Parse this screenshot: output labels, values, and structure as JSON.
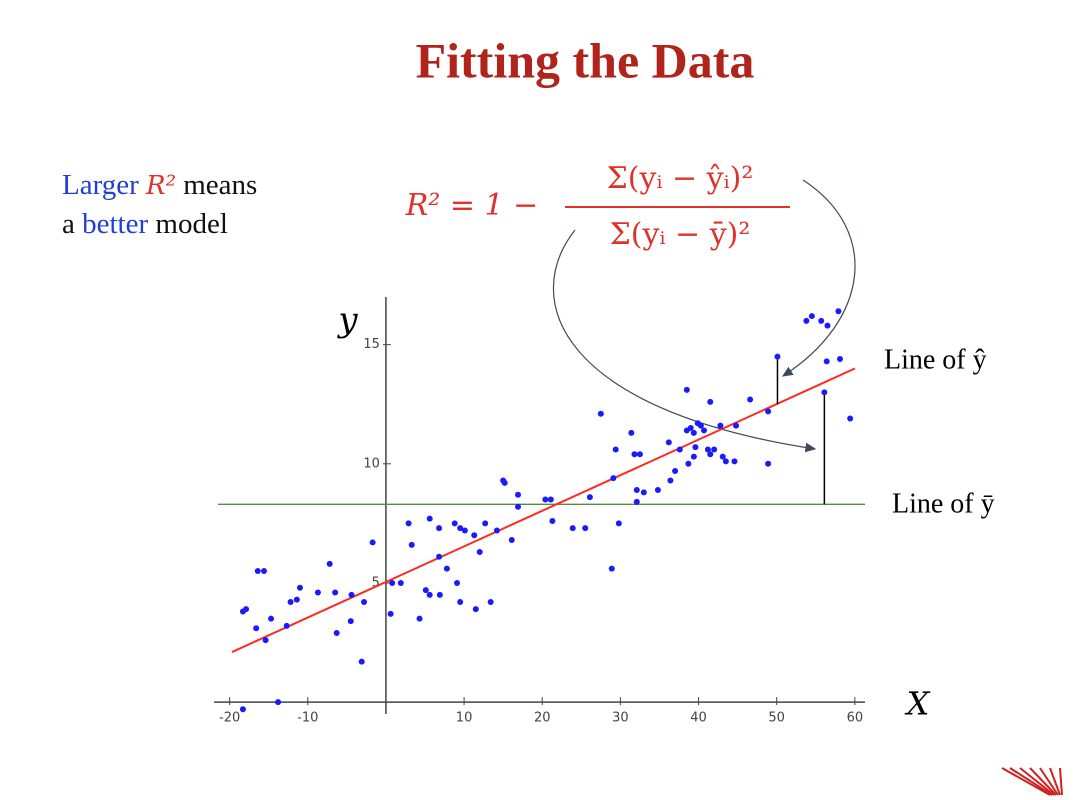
{
  "chart_data": {
    "type": "scatter",
    "title": "Fitting the Data",
    "caption": {
      "line1": [
        "Larger",
        "R²",
        "means"
      ],
      "line2": [
        "a",
        "better",
        "model"
      ]
    },
    "formula": {
      "lhs": "R² = 1 −",
      "numerator": "Σ(yᵢ − ŷᵢ)²",
      "denominator": "Σ(yᵢ − ȳ)²"
    },
    "x_label": "X",
    "y_label": "y",
    "fit_label": "Line of ŷ",
    "mean_label": "Line of ȳ",
    "xlim": [
      -22,
      61.3
    ],
    "ylim": [
      -0.5,
      17
    ],
    "xticks": [
      -20,
      -10,
      10,
      20,
      30,
      40,
      50,
      60
    ],
    "yticks": [
      5,
      10,
      15
    ],
    "series": [
      {
        "color": "#1a1aff",
        "x": [
          -18.3,
          -17.9,
          -16.6,
          -16.4,
          -15.6,
          -15.4,
          -14.7,
          -12.7,
          -12.2,
          -11.4,
          -11.0,
          -8.7,
          -7.2,
          -6.5,
          -6.3,
          -4.5,
          -4.4,
          -3.1,
          -2.8,
          -1.7,
          0.6,
          0.8,
          1.9,
          2.9,
          3.3,
          4.3,
          5.1,
          5.6,
          5.6,
          6.8,
          6.8,
          6.9,
          7.8,
          8.8,
          9.1,
          9.5,
          9.5,
          10.1,
          11.3,
          11.5,
          12.0,
          12.7,
          13.4,
          14.2,
          15.0,
          15.2,
          16.1,
          16.9,
          16.9,
          20.4,
          21.1,
          21.3,
          23.9,
          25.5,
          26.1,
          27.5,
          28.9,
          29.1,
          29.4,
          29.8,
          31.4,
          31.8,
          32.5,
          32.1,
          32.1,
          33.0,
          34.8,
          36.2,
          36.4,
          37.0,
          37.6,
          38.5,
          38.5,
          38.7,
          39.0,
          39.4,
          39.4,
          39.6,
          39.9,
          40.3,
          40.7,
          41.2,
          41.5,
          41.5,
          42.0,
          42.8,
          43.1,
          43.5,
          44.6,
          44.8,
          46.6,
          48.9,
          48.9,
          50.1,
          53.8,
          54.5,
          55.7,
          56.1,
          56.4,
          56.5,
          57.9,
          58.1,
          59.4,
          -18.3,
          -13.8
        ],
        "values": [
          3.8,
          3.9,
          3.1,
          5.5,
          5.5,
          2.6,
          3.5,
          3.2,
          4.2,
          4.3,
          4.8,
          4.6,
          5.8,
          4.6,
          2.9,
          3.4,
          4.5,
          1.7,
          4.2,
          6.7,
          3.7,
          5.0,
          5.0,
          7.5,
          6.6,
          3.5,
          4.7,
          7.7,
          4.5,
          6.1,
          7.3,
          4.5,
          5.6,
          7.5,
          5.0,
          7.3,
          4.2,
          7.2,
          7.0,
          3.9,
          6.3,
          7.5,
          4.2,
          7.2,
          9.3,
          9.2,
          6.8,
          8.7,
          8.2,
          8.5,
          8.5,
          7.6,
          7.3,
          7.3,
          8.6,
          12.1,
          5.6,
          9.4,
          10.6,
          7.5,
          11.3,
          10.4,
          10.4,
          8.9,
          8.4,
          8.8,
          8.9,
          10.9,
          9.3,
          9.7,
          10.6,
          13.1,
          11.4,
          10.0,
          11.5,
          11.3,
          10.3,
          10.7,
          11.7,
          11.6,
          11.4,
          10.6,
          12.6,
          10.4,
          10.6,
          11.6,
          10.3,
          10.1,
          10.1,
          11.6,
          12.7,
          10.0,
          12.2,
          14.5,
          16.0,
          16.2,
          16.0,
          13.0,
          14.3,
          15.8,
          16.4,
          14.4,
          11.9,
          -0.3,
          0.0
        ]
      }
    ],
    "fit_line": {
      "x": [
        -19.7,
        60.0
      ],
      "values": [
        2.1,
        14.0
      ],
      "color": "#ff2a1f"
    },
    "mean_line": {
      "value": 8.3,
      "color": "#5a8a3c"
    },
    "residuals": [
      {
        "x": 50.1,
        "values": [
          14.5,
          12.5
        ]
      },
      {
        "x": 56.1,
        "values": [
          13.0,
          8.3
        ]
      }
    ]
  }
}
